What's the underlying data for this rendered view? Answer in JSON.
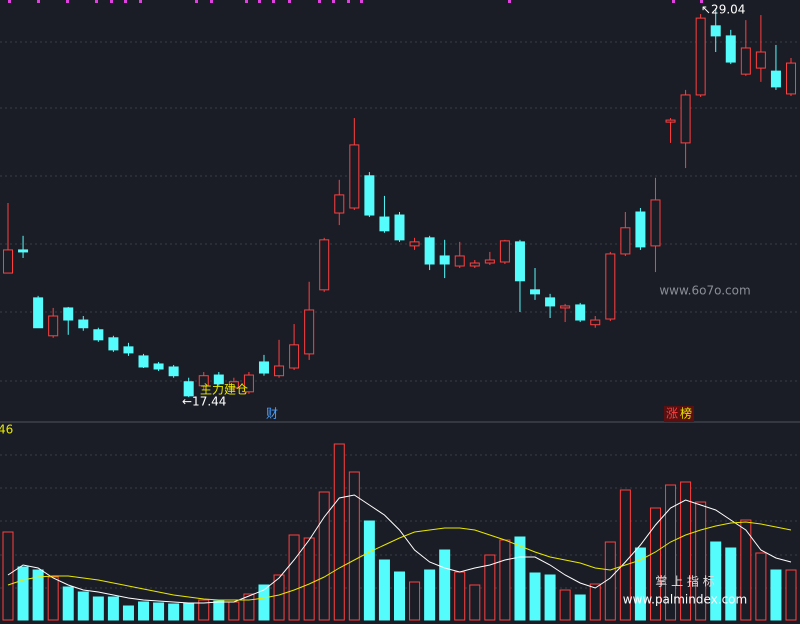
{
  "chart_data": [
    {
      "type": "candlestick",
      "up_color": "#ff4040",
      "down_color": "#54fcfc",
      "ylim": [
        16.7,
        29.28
      ],
      "open": [
        21.14,
        21.83,
        20.4,
        19.27,
        20.1,
        19.74,
        19.45,
        19.21,
        18.94,
        18.67,
        18.43,
        18.34,
        17.9,
        17.78,
        18.1,
        17.72,
        17.6,
        18.49,
        18.08,
        18.31,
        18.73,
        20.64,
        22.93,
        23.08,
        24.04,
        22.81,
        22.87,
        21.95,
        22.19,
        21.65,
        21.35,
        21.35,
        21.44,
        21.47,
        22.07,
        20.64,
        20.4,
        20.1,
        20.19,
        19.6,
        19.77,
        21.71,
        22.96,
        21.95,
        25.64,
        25.02,
        26.45,
        28.51,
        28.21,
        27.07,
        27.25,
        27.16,
        26.48
      ],
      "high": [
        23.23,
        22.25,
        20.46,
        20.1,
        20.13,
        19.86,
        19.51,
        19.27,
        19.06,
        18.73,
        18.49,
        18.4,
        18.02,
        18.19,
        18.19,
        18.02,
        18.19,
        18.7,
        19.15,
        19.62,
        20.88,
        22.19,
        23.92,
        25.76,
        24.15,
        23.44,
        22.96,
        22.19,
        22.25,
        22.13,
        22.07,
        21.53,
        21.77,
        22.13,
        22.13,
        21.29,
        20.52,
        20.22,
        20.25,
        19.86,
        21.77,
        22.96,
        23.08,
        23.98,
        25.76,
        26.6,
        28.86,
        29.04,
        28.39,
        28.68,
        28.83,
        27.94,
        27.55
      ],
      "low": [
        21.14,
        21.59,
        19.51,
        19.21,
        19.3,
        19.42,
        19.09,
        18.79,
        18.67,
        18.31,
        18.22,
        18.02,
        17.44,
        17.66,
        17.78,
        17.6,
        17.54,
        18.08,
        18.02,
        18.25,
        18.55,
        20.58,
        22.57,
        23.02,
        22.81,
        22.34,
        22.07,
        21.83,
        21.23,
        20.99,
        21.29,
        21.29,
        21.38,
        21.41,
        19.98,
        20.34,
        19.8,
        19.68,
        19.68,
        19.51,
        19.71,
        21.65,
        21.83,
        21.17,
        25.02,
        24.27,
        26.39,
        27.73,
        27.37,
        27.02,
        26.84,
        26.6,
        26.42
      ],
      "close": [
        21.83,
        21.77,
        19.51,
        19.86,
        19.74,
        19.51,
        19.15,
        18.85,
        18.76,
        18.34,
        18.28,
        18.08,
        17.48,
        18.08,
        17.84,
        17.9,
        18.1,
        18.16,
        18.37,
        19.0,
        20.04,
        22.13,
        23.47,
        24.96,
        22.87,
        22.4,
        22.13,
        22.07,
        21.41,
        21.41,
        21.65,
        21.44,
        21.53,
        22.1,
        20.91,
        20.52,
        20.16,
        20.16,
        19.74,
        19.74,
        21.71,
        22.49,
        21.92,
        23.32,
        25.7,
        26.45,
        28.74,
        28.21,
        27.43,
        27.85,
        27.73,
        26.69,
        27.4
      ],
      "annotations": {
        "high_label": "↖29.04",
        "low_label": "←17.44",
        "signal": "主力建仓",
        "cai": "财",
        "zhang": "涨",
        "bang": "榜"
      }
    },
    {
      "type": "bar",
      "ylim": [
        0,
        195
      ],
      "label": "46",
      "values": [
        88,
        53,
        50,
        43,
        33,
        28,
        23,
        23,
        14,
        18,
        17,
        16,
        17,
        20,
        19,
        18,
        26,
        35,
        45,
        85,
        82,
        128,
        176,
        148,
        99,
        60,
        48,
        38,
        50,
        70,
        48,
        35,
        65,
        80,
        83,
        47,
        45,
        30,
        25,
        36,
        78,
        130,
        72,
        112,
        135,
        138,
        118,
        78,
        72,
        100,
        67,
        50,
        50
      ],
      "series": [
        {
          "color": "#ffffff",
          "values": [
            45,
            55,
            52,
            42,
            35,
            30,
            28,
            25,
            22,
            20,
            19,
            18,
            17,
            17,
            18,
            18,
            24,
            30,
            42,
            60,
            80,
            103,
            122,
            125,
            115,
            105,
            90,
            70,
            58,
            52,
            48,
            52,
            55,
            60,
            63,
            63,
            55,
            45,
            37,
            32,
            42,
            58,
            75,
            95,
            112,
            120,
            115,
            110,
            100,
            90,
            70,
            62,
            58
          ]
        },
        {
          "color": "#e8e800",
          "values": [
            35,
            40,
            43,
            44,
            44,
            42,
            40,
            37,
            34,
            31,
            28,
            25,
            23,
            21,
            20,
            20,
            20,
            22,
            25,
            30,
            36,
            43,
            52,
            60,
            68,
            75,
            82,
            88,
            90,
            92,
            92,
            90,
            85,
            80,
            74,
            68,
            63,
            60,
            57,
            52,
            50,
            55,
            60,
            68,
            78,
            85,
            90,
            94,
            97,
            98,
            96,
            93,
            90
          ]
        }
      ]
    }
  ],
  "watermark": {
    "site1": "www.6o7o.com",
    "brand": "掌 上 指 标",
    "site2": "www.palmindex.com"
  }
}
